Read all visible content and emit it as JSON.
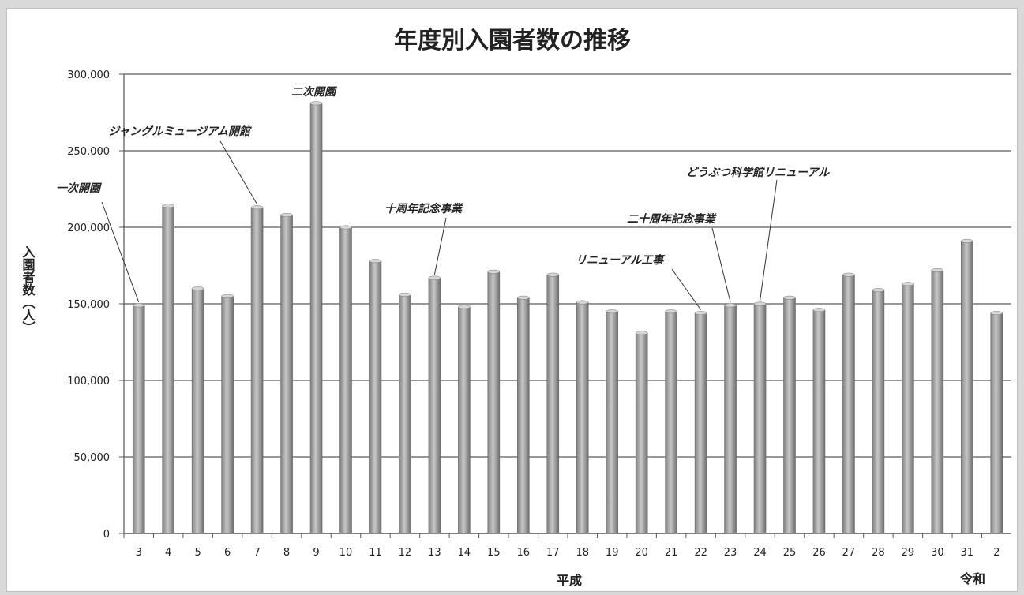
{
  "chart_data": {
    "type": "bar",
    "title": "年度別入園者数の推移",
    "ylabel": "入園者数（人）",
    "era_labels": [
      "平成",
      "令和"
    ],
    "categories": [
      "3",
      "4",
      "5",
      "6",
      "7",
      "8",
      "9",
      "10",
      "11",
      "12",
      "13",
      "14",
      "15",
      "16",
      "17",
      "18",
      "19",
      "20",
      "21",
      "22",
      "23",
      "24",
      "25",
      "26",
      "27",
      "28",
      "29",
      "30",
      "31",
      "2"
    ],
    "values": [
      149000,
      214000,
      160000,
      155000,
      213000,
      208000,
      281000,
      200000,
      178000,
      156000,
      167000,
      148000,
      171000,
      154000,
      169000,
      151000,
      145000,
      131000,
      145000,
      144000,
      149000,
      150000,
      154000,
      146000,
      169000,
      159000,
      163000,
      172000,
      191000,
      144000
    ],
    "ylim": [
      0,
      300000
    ],
    "yticks": [
      0,
      50000,
      100000,
      150000,
      200000,
      250000,
      300000
    ],
    "ytick_labels": [
      "0",
      "50,000",
      "100,000",
      "150,000",
      "200,000",
      "250,000",
      "300,000"
    ],
    "grid": true,
    "legend": "none",
    "bar_color": "#a6a6a6",
    "annotations": [
      {
        "text": "一次開園",
        "category_index": 0
      },
      {
        "text": "ジャングルミュージアム開館",
        "category_index": 4
      },
      {
        "text": "二次開園",
        "category_index": 6
      },
      {
        "text": "十周年記念事業",
        "category_index": 10
      },
      {
        "text": "リニューアル工事",
        "category_index": 19
      },
      {
        "text": "二十周年記念事業",
        "category_index": 20
      },
      {
        "text": "どうぶつ科学館リニューアル",
        "category_index": 21
      }
    ]
  }
}
